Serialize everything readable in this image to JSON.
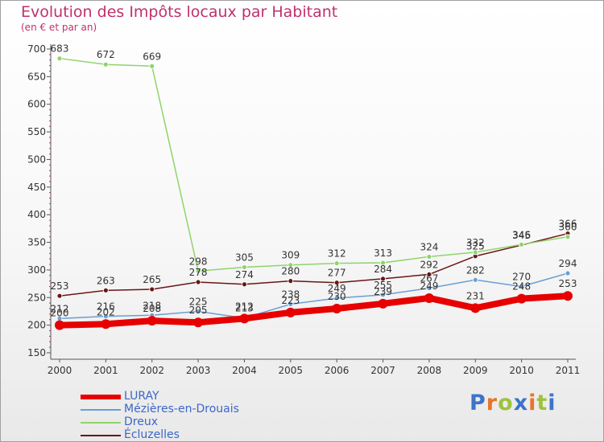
{
  "chart_data": {
    "type": "line",
    "title": "Evolution des Impôts locaux par Habitant",
    "subtitle": "(en € et par an)",
    "xlabel": "",
    "ylabel": "",
    "x": [
      "2000",
      "2001",
      "2002",
      "2003",
      "2004",
      "2005",
      "2006",
      "2007",
      "2008",
      "2009",
      "2010",
      "2011"
    ],
    "ylim": [
      150,
      700
    ],
    "yticks": [
      150,
      200,
      250,
      300,
      350,
      400,
      450,
      500,
      550,
      600,
      650,
      700
    ],
    "grid": false,
    "legend": "bottom-left",
    "series": [
      {
        "name": "Écluzelles",
        "color": "#6a1515",
        "values": [
          253,
          263,
          265,
          278,
          274,
          280,
          277,
          284,
          292,
          325,
          345,
          366
        ],
        "labels": [
          "253",
          "263",
          "265",
          "278",
          "274",
          "280",
          "277",
          "284",
          "292",
          "325",
          "345",
          "366"
        ]
      },
      {
        "name": "Dreux",
        "color": "#8fd46a",
        "values": [
          683,
          672,
          669,
          298,
          305,
          309,
          312,
          313,
          324,
          332,
          346,
          360
        ],
        "labels": [
          "683",
          "672",
          "669",
          "298",
          "305",
          "309",
          "312",
          "313",
          "324",
          "332",
          "346",
          "360"
        ]
      },
      {
        "name": "Mézières-en-Drouais",
        "color": "#6b9fd2",
        "values": [
          212,
          216,
          218,
          225,
          213,
          238,
          249,
          255,
          267,
          282,
          270,
          294
        ],
        "labels": [
          "212",
          "216",
          "218",
          "225",
          "213",
          "238",
          "249",
          "255",
          "267",
          "282",
          "270",
          "294"
        ]
      },
      {
        "name": "LURAY",
        "color": "#e60000",
        "values": [
          200,
          202,
          208,
          205,
          212,
          223,
          230,
          239,
          249,
          231,
          248,
          253
        ],
        "labels": [
          "200",
          "202",
          "208",
          "205",
          "212",
          "223",
          "230",
          "239",
          "249",
          "231",
          "248",
          "253"
        ]
      }
    ]
  },
  "legend_items": [
    {
      "label": "LURAY",
      "color": "#e60000"
    },
    {
      "label": "Mézières-en-Drouais",
      "color": "#6b9fd2"
    },
    {
      "label": "Dreux",
      "color": "#8fd46a"
    },
    {
      "label": "Écluzelles",
      "color": "#6a1515"
    }
  ],
  "brand": {
    "text": "Proxiti",
    "colors": [
      "#3d74c9",
      "#e8742a",
      "#9ec33b",
      "#3d74c9",
      "#e8742a",
      "#9ec33b",
      "#3d74c9"
    ]
  }
}
